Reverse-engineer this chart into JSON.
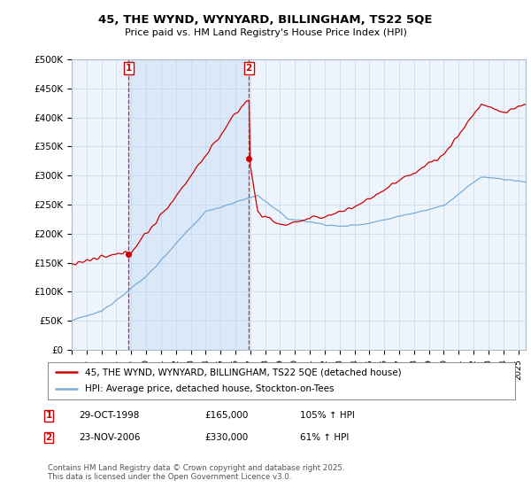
{
  "title": "45, THE WYND, WYNYARD, BILLINGHAM, TS22 5QE",
  "subtitle": "Price paid vs. HM Land Registry's House Price Index (HPI)",
  "legend_line1": "45, THE WYND, WYNYARD, BILLINGHAM, TS22 5QE (detached house)",
  "legend_line2": "HPI: Average price, detached house, Stockton-on-Tees",
  "transaction1_date": "29-OCT-1998",
  "transaction1_price": "£165,000",
  "transaction1_hpi": "105% ↑ HPI",
  "transaction2_date": "23-NOV-2006",
  "transaction2_price": "£330,000",
  "transaction2_hpi": "61% ↑ HPI",
  "copyright": "Contains HM Land Registry data © Crown copyright and database right 2025.\nThis data is licensed under the Open Government Licence v3.0.",
  "hpi_color": "#7aacd6",
  "price_color": "#cc0000",
  "vline_color": "#cc0000",
  "shade_color": "#ddeeff",
  "background_color": "#ffffff",
  "grid_color": "#ccddee",
  "ylim": [
    0,
    500000
  ],
  "yticks": [
    0,
    50000,
    100000,
    150000,
    200000,
    250000,
    300000,
    350000,
    400000,
    450000,
    500000
  ],
  "ytick_labels": [
    "£0",
    "£50K",
    "£100K",
    "£150K",
    "£200K",
    "£250K",
    "£300K",
    "£350K",
    "£400K",
    "£450K",
    "£500K"
  ],
  "xlim_start": 1995.0,
  "xlim_end": 2025.5,
  "transaction1_x": 1998.83,
  "transaction2_x": 2006.9,
  "transaction1_y": 165000,
  "transaction2_y": 330000
}
